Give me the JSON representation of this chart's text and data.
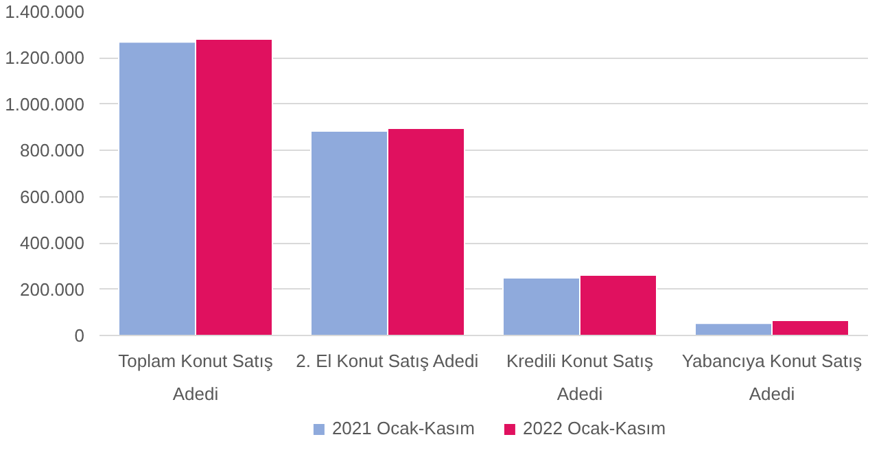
{
  "chart_data": {
    "type": "bar",
    "categories": [
      "Toplam Konut Satış\nAdedi",
      "2. El Konut Satış Adedi",
      "Kredili Konut Satış\nAdedi",
      "Yabancıya Konut Satış\nAdedi"
    ],
    "series": [
      {
        "name": "2021 Ocak-Kasım",
        "color": "#8faadc",
        "values": [
          1269000,
          884000,
          249000,
          53000
        ]
      },
      {
        "name": "2022 Ocak-Kasım",
        "color": "#e0115f",
        "values": [
          1281000,
          896000,
          261000,
          65000
        ]
      }
    ],
    "ylim": [
      0,
      1400000
    ],
    "yticks": [
      {
        "value": 0,
        "label": "0"
      },
      {
        "value": 200000,
        "label": "200.000"
      },
      {
        "value": 400000,
        "label": "400.000"
      },
      {
        "value": 600000,
        "label": "600.000"
      },
      {
        "value": 800000,
        "label": "800.000"
      },
      {
        "value": 1000000,
        "label": "1.000.000"
      },
      {
        "value": 1200000,
        "label": "1.200.000"
      },
      {
        "value": 1400000,
        "label": "1.400.000"
      }
    ],
    "grid": "y",
    "legend": "bottom"
  }
}
